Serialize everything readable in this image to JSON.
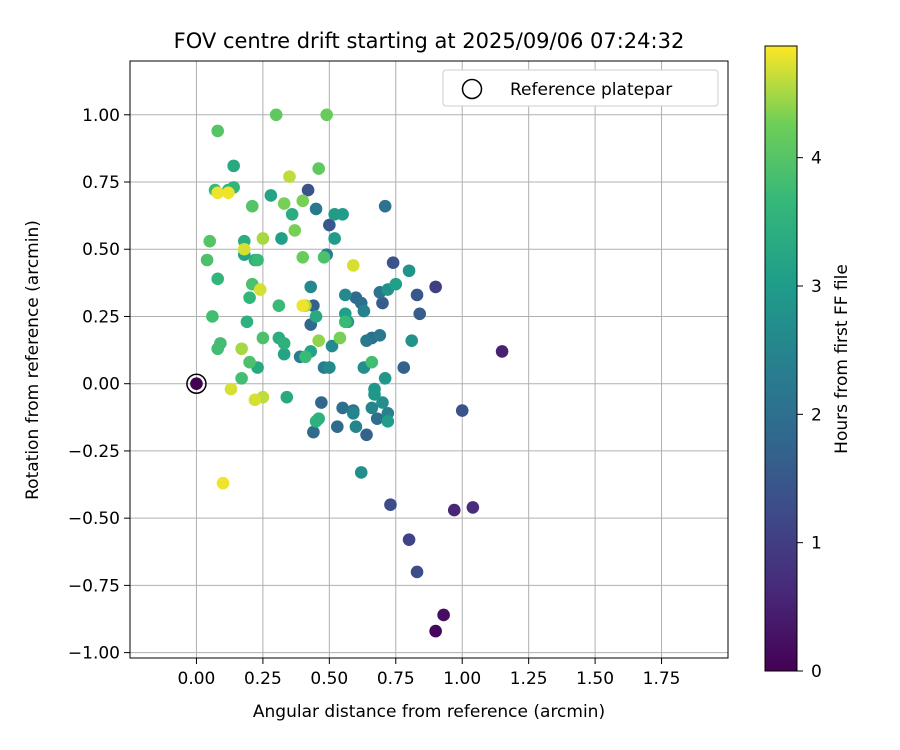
{
  "chart_data": {
    "type": "scatter",
    "title": "FOV centre drift starting at 2025/09/06 07:24:32",
    "xlabel": "Angular distance from reference (arcmin)",
    "ylabel": "Rotation from reference (arcmin)",
    "xlim": [
      -0.25,
      2.0
    ],
    "ylim": [
      -1.02,
      1.2
    ],
    "xticks": [
      0.0,
      0.25,
      0.5,
      0.75,
      1.0,
      1.25,
      1.5,
      1.75
    ],
    "xtick_labels": [
      "0.00",
      "0.25",
      "0.50",
      "0.75",
      "1.00",
      "1.25",
      "1.50",
      "1.75"
    ],
    "yticks": [
      1.0,
      0.75,
      0.5,
      0.25,
      0.0,
      -0.25,
      -0.5,
      -0.75,
      -1.0
    ],
    "ytick_labels": [
      "1.00",
      "0.75",
      "0.50",
      "0.25",
      "0.00",
      "−0.25",
      "−0.50",
      "−0.75",
      "−1.00"
    ],
    "grid": true,
    "legend": {
      "placement": "top-right",
      "label": "Reference platepar"
    },
    "reference_point": {
      "x": 0.0,
      "y": 0.0
    },
    "colorbar": {
      "label": "Hours from first FF file",
      "range": [
        0,
        4.87
      ],
      "ticks": [
        0,
        1,
        2,
        3,
        4
      ],
      "tick_labels": [
        "0",
        "1",
        "2",
        "3",
        "4"
      ],
      "colormap": "viridis"
    },
    "points": [
      {
        "x": 0.0,
        "y": 0.0,
        "h": 0.0
      },
      {
        "x": 0.9,
        "y": -0.92,
        "h": 0.1
      },
      {
        "x": 0.93,
        "y": -0.86,
        "h": 0.2
      },
      {
        "x": 1.15,
        "y": 0.12,
        "h": 0.5
      },
      {
        "x": 0.97,
        "y": -0.47,
        "h": 0.6
      },
      {
        "x": 1.04,
        "y": -0.46,
        "h": 0.7
      },
      {
        "x": 0.9,
        "y": 0.36,
        "h": 1.0
      },
      {
        "x": 0.8,
        "y": -0.58,
        "h": 1.1
      },
      {
        "x": 0.83,
        "y": -0.7,
        "h": 1.3
      },
      {
        "x": 0.73,
        "y": -0.45,
        "h": 1.3
      },
      {
        "x": 1.0,
        "y": -0.1,
        "h": 1.4
      },
      {
        "x": 0.74,
        "y": 0.45,
        "h": 1.4
      },
      {
        "x": 0.42,
        "y": 0.72,
        "h": 1.4
      },
      {
        "x": 0.5,
        "y": 0.59,
        "h": 1.5
      },
      {
        "x": 0.83,
        "y": 0.33,
        "h": 1.5
      },
      {
        "x": 0.7,
        "y": 0.3,
        "h": 1.6
      },
      {
        "x": 0.84,
        "y": 0.26,
        "h": 1.6
      },
      {
        "x": 0.78,
        "y": 0.06,
        "h": 1.7
      },
      {
        "x": 0.64,
        "y": -0.19,
        "h": 1.7
      },
      {
        "x": 0.44,
        "y": 0.29,
        "h": 1.7
      },
      {
        "x": 0.43,
        "y": 0.22,
        "h": 1.8
      },
      {
        "x": 0.47,
        "y": -0.07,
        "h": 1.8
      },
      {
        "x": 0.44,
        "y": -0.18,
        "h": 1.9
      },
      {
        "x": 0.53,
        "y": -0.16,
        "h": 1.9
      },
      {
        "x": 0.6,
        "y": 0.32,
        "h": 1.9
      },
      {
        "x": 0.62,
        "y": 0.3,
        "h": 2.0
      },
      {
        "x": 0.66,
        "y": 0.17,
        "h": 2.0
      },
      {
        "x": 0.68,
        "y": -0.13,
        "h": 2.0
      },
      {
        "x": 0.55,
        "y": -0.09,
        "h": 2.0
      },
      {
        "x": 0.59,
        "y": -0.1,
        "h": 2.1
      },
      {
        "x": 0.69,
        "y": 0.34,
        "h": 2.1
      },
      {
        "x": 0.71,
        "y": 0.66,
        "h": 2.1
      },
      {
        "x": 0.64,
        "y": 0.16,
        "h": 2.2
      },
      {
        "x": 0.69,
        "y": 0.18,
        "h": 2.2
      },
      {
        "x": 0.45,
        "y": 0.65,
        "h": 2.2
      },
      {
        "x": 0.39,
        "y": 0.1,
        "h": 2.3
      },
      {
        "x": 0.49,
        "y": 0.48,
        "h": 2.3
      },
      {
        "x": 0.48,
        "y": 0.06,
        "h": 2.3
      },
      {
        "x": 0.63,
        "y": 0.27,
        "h": 2.4
      },
      {
        "x": 0.72,
        "y": -0.11,
        "h": 2.4
      },
      {
        "x": 0.66,
        "y": -0.09,
        "h": 2.5
      },
      {
        "x": 0.6,
        "y": -0.16,
        "h": 2.5
      },
      {
        "x": 0.59,
        "y": -0.11,
        "h": 2.5
      },
      {
        "x": 0.56,
        "y": 0.33,
        "h": 2.6
      },
      {
        "x": 0.5,
        "y": 0.06,
        "h": 2.6
      },
      {
        "x": 0.43,
        "y": 0.36,
        "h": 2.6
      },
      {
        "x": 0.51,
        "y": 0.14,
        "h": 2.6
      },
      {
        "x": 0.63,
        "y": 0.06,
        "h": 2.7
      },
      {
        "x": 0.62,
        "y": -0.33,
        "h": 2.7
      },
      {
        "x": 0.7,
        "y": -0.07,
        "h": 2.7
      },
      {
        "x": 0.72,
        "y": 0.35,
        "h": 2.8
      },
      {
        "x": 0.81,
        "y": 0.16,
        "h": 2.8
      },
      {
        "x": 0.8,
        "y": 0.42,
        "h": 2.8
      },
      {
        "x": 0.71,
        "y": 0.02,
        "h": 2.9
      },
      {
        "x": 0.67,
        "y": -0.04,
        "h": 2.9
      },
      {
        "x": 0.67,
        "y": -0.02,
        "h": 2.9
      },
      {
        "x": 0.57,
        "y": 0.23,
        "h": 3.0
      },
      {
        "x": 0.52,
        "y": 0.54,
        "h": 3.0
      },
      {
        "x": 0.52,
        "y": 0.63,
        "h": 3.0
      },
      {
        "x": 0.55,
        "y": 0.63,
        "h": 3.0
      },
      {
        "x": 0.72,
        "y": -0.14,
        "h": 3.0
      },
      {
        "x": 0.75,
        "y": 0.37,
        "h": 3.1
      },
      {
        "x": 0.32,
        "y": 0.54,
        "h": 3.1
      },
      {
        "x": 0.56,
        "y": 0.26,
        "h": 3.1
      },
      {
        "x": 0.43,
        "y": 0.12,
        "h": 3.2
      },
      {
        "x": 0.28,
        "y": 0.7,
        "h": 3.2
      },
      {
        "x": 0.33,
        "y": 0.11,
        "h": 3.2
      },
      {
        "x": 0.18,
        "y": 0.48,
        "h": 3.2
      },
      {
        "x": 0.14,
        "y": 0.81,
        "h": 3.3
      },
      {
        "x": 0.23,
        "y": 0.06,
        "h": 3.3
      },
      {
        "x": 0.34,
        "y": -0.05,
        "h": 3.3
      },
      {
        "x": 0.45,
        "y": 0.25,
        "h": 3.3
      },
      {
        "x": 0.31,
        "y": 0.17,
        "h": 3.4
      },
      {
        "x": 0.22,
        "y": 0.46,
        "h": 3.4
      },
      {
        "x": 0.18,
        "y": 0.53,
        "h": 3.4
      },
      {
        "x": 0.36,
        "y": 0.63,
        "h": 3.4
      },
      {
        "x": 0.46,
        "y": -0.13,
        "h": 3.5
      },
      {
        "x": 0.45,
        "y": -0.14,
        "h": 3.5
      },
      {
        "x": 0.33,
        "y": 0.15,
        "h": 3.5
      },
      {
        "x": 0.19,
        "y": 0.23,
        "h": 3.5
      },
      {
        "x": 0.14,
        "y": 0.73,
        "h": 3.6
      },
      {
        "x": 0.08,
        "y": 0.39,
        "h": 3.6
      },
      {
        "x": 0.2,
        "y": 0.32,
        "h": 3.6
      },
      {
        "x": 0.12,
        "y": 0.72,
        "h": 3.6
      },
      {
        "x": 0.23,
        "y": 0.46,
        "h": 3.7
      },
      {
        "x": 0.07,
        "y": 0.72,
        "h": 3.7
      },
      {
        "x": 0.41,
        "y": 0.1,
        "h": 3.7
      },
      {
        "x": 0.56,
        "y": 0.23,
        "h": 3.7
      },
      {
        "x": 0.31,
        "y": 0.29,
        "h": 3.7
      },
      {
        "x": 0.17,
        "y": 0.02,
        "h": 3.8
      },
      {
        "x": 0.09,
        "y": 0.15,
        "h": 3.8
      },
      {
        "x": 0.66,
        "y": 0.08,
        "h": 3.8
      },
      {
        "x": 0.08,
        "y": 0.13,
        "h": 3.8
      },
      {
        "x": 0.06,
        "y": 0.25,
        "h": 3.8
      },
      {
        "x": 0.2,
        "y": 0.08,
        "h": 3.9
      },
      {
        "x": 0.21,
        "y": 0.37,
        "h": 3.9
      },
      {
        "x": 0.25,
        "y": 0.17,
        "h": 3.9
      },
      {
        "x": 0.48,
        "y": 0.47,
        "h": 3.9
      },
      {
        "x": 0.04,
        "y": 0.46,
        "h": 3.9
      },
      {
        "x": 0.05,
        "y": 0.53,
        "h": 4.0
      },
      {
        "x": 0.21,
        "y": 0.66,
        "h": 4.0
      },
      {
        "x": 0.08,
        "y": 0.94,
        "h": 4.0
      },
      {
        "x": 0.3,
        "y": 1.0,
        "h": 4.1
      },
      {
        "x": 0.46,
        "y": 0.8,
        "h": 4.1
      },
      {
        "x": 0.4,
        "y": 0.47,
        "h": 4.2
      },
      {
        "x": 0.49,
        "y": 1.0,
        "h": 4.2
      },
      {
        "x": 0.33,
        "y": 0.67,
        "h": 4.3
      },
      {
        "x": 0.37,
        "y": 0.57,
        "h": 4.3
      },
      {
        "x": 0.4,
        "y": 0.68,
        "h": 4.3
      },
      {
        "x": 0.54,
        "y": 0.17,
        "h": 4.3
      },
      {
        "x": 0.46,
        "y": 0.16,
        "h": 4.4
      },
      {
        "x": 0.41,
        "y": 0.29,
        "h": 4.5
      },
      {
        "x": 0.25,
        "y": 0.54,
        "h": 4.5
      },
      {
        "x": 0.17,
        "y": 0.13,
        "h": 4.5
      },
      {
        "x": 0.35,
        "y": 0.77,
        "h": 4.6
      },
      {
        "x": 0.25,
        "y": -0.05,
        "h": 4.6
      },
      {
        "x": 0.22,
        "y": -0.06,
        "h": 4.7
      },
      {
        "x": 0.18,
        "y": 0.5,
        "h": 4.7
      },
      {
        "x": 0.59,
        "y": 0.44,
        "h": 4.7
      },
      {
        "x": 0.24,
        "y": 0.35,
        "h": 4.7
      },
      {
        "x": 0.13,
        "y": -0.02,
        "h": 4.7
      },
      {
        "x": 0.1,
        "y": -0.37,
        "h": 4.8
      },
      {
        "x": 0.12,
        "y": 0.71,
        "h": 4.8
      },
      {
        "x": 0.08,
        "y": 0.71,
        "h": 4.8
      },
      {
        "x": 0.4,
        "y": 0.29,
        "h": 4.8
      }
    ]
  }
}
